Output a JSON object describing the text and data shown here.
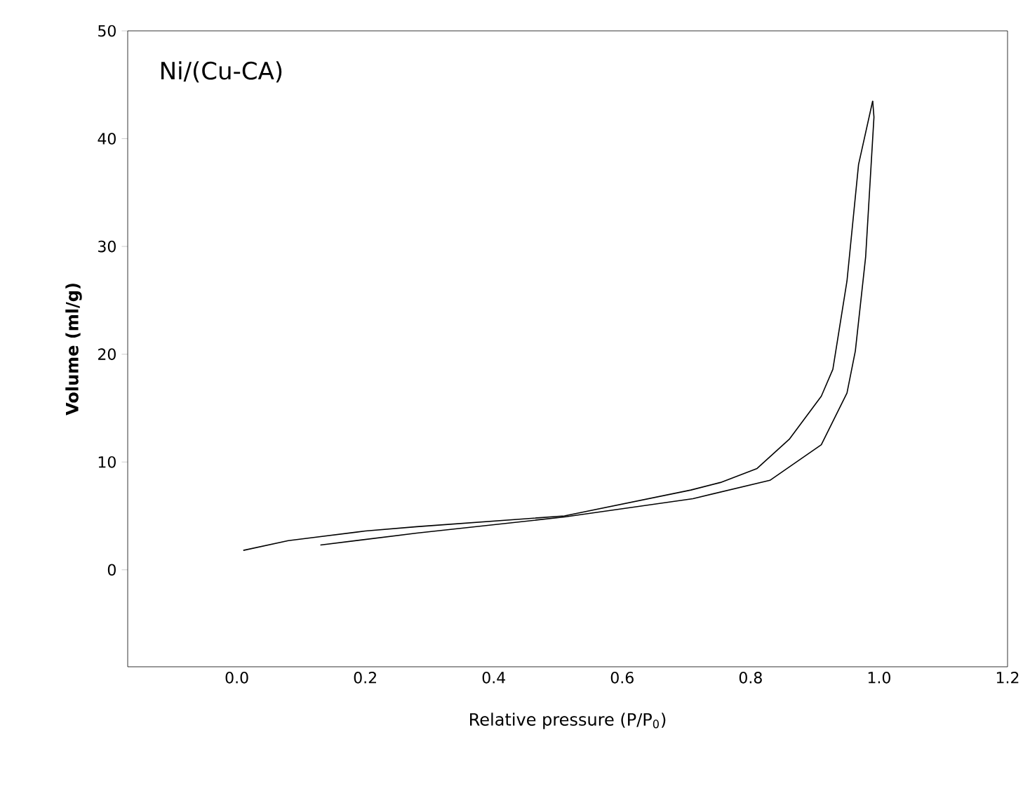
{
  "chart_data": {
    "type": "line",
    "xlabel": "Relative pressure (P/P$_{0}$)",
    "ylabel": "Volume (ml/g)",
    "annotations": [
      "Ni/(Cu-CA)"
    ],
    "xlim": [
      -0.17,
      1.2
    ],
    "ylim": [
      -9,
      50
    ],
    "xticks": [
      {
        "value": 0,
        "label": "0.0"
      },
      {
        "value": 0.2,
        "label": "0.2"
      },
      {
        "value": 0.4,
        "label": "0.4"
      },
      {
        "value": 0.6,
        "label": "0.6"
      },
      {
        "value": 0.8,
        "label": "0.8"
      },
      {
        "value": 1,
        "label": "1.0"
      },
      {
        "value": 1.2,
        "label": "1.2"
      }
    ],
    "yticks": [
      0,
      10,
      20,
      30,
      40,
      50
    ],
    "grid": false,
    "marker": "none",
    "line_style": "solid",
    "series": [
      {
        "color": "#000000",
        "x": [
          0.13,
          0.28,
          0.51,
          0.71,
          0.83,
          0.91,
          0.95,
          0.963,
          0.979,
          0.992,
          0.99
        ],
        "values": [
          2.3,
          3.4,
          4.9,
          6.6,
          8.3,
          11.6,
          16.4,
          20.3,
          29,
          42,
          43.5
        ]
      },
      {
        "color": "#000000",
        "x": [
          0.99,
          0.968,
          0.95,
          0.928,
          0.91,
          0.86,
          0.81,
          0.753,
          0.707,
          0.51,
          0.28,
          0.2,
          0.08,
          0.01
        ],
        "values": [
          43.5,
          37.6,
          26.8,
          18.6,
          16.1,
          12.1,
          9.4,
          8.1,
          7.4,
          5.0,
          4.0,
          3.6,
          2.7,
          1.8
        ]
      }
    ]
  }
}
